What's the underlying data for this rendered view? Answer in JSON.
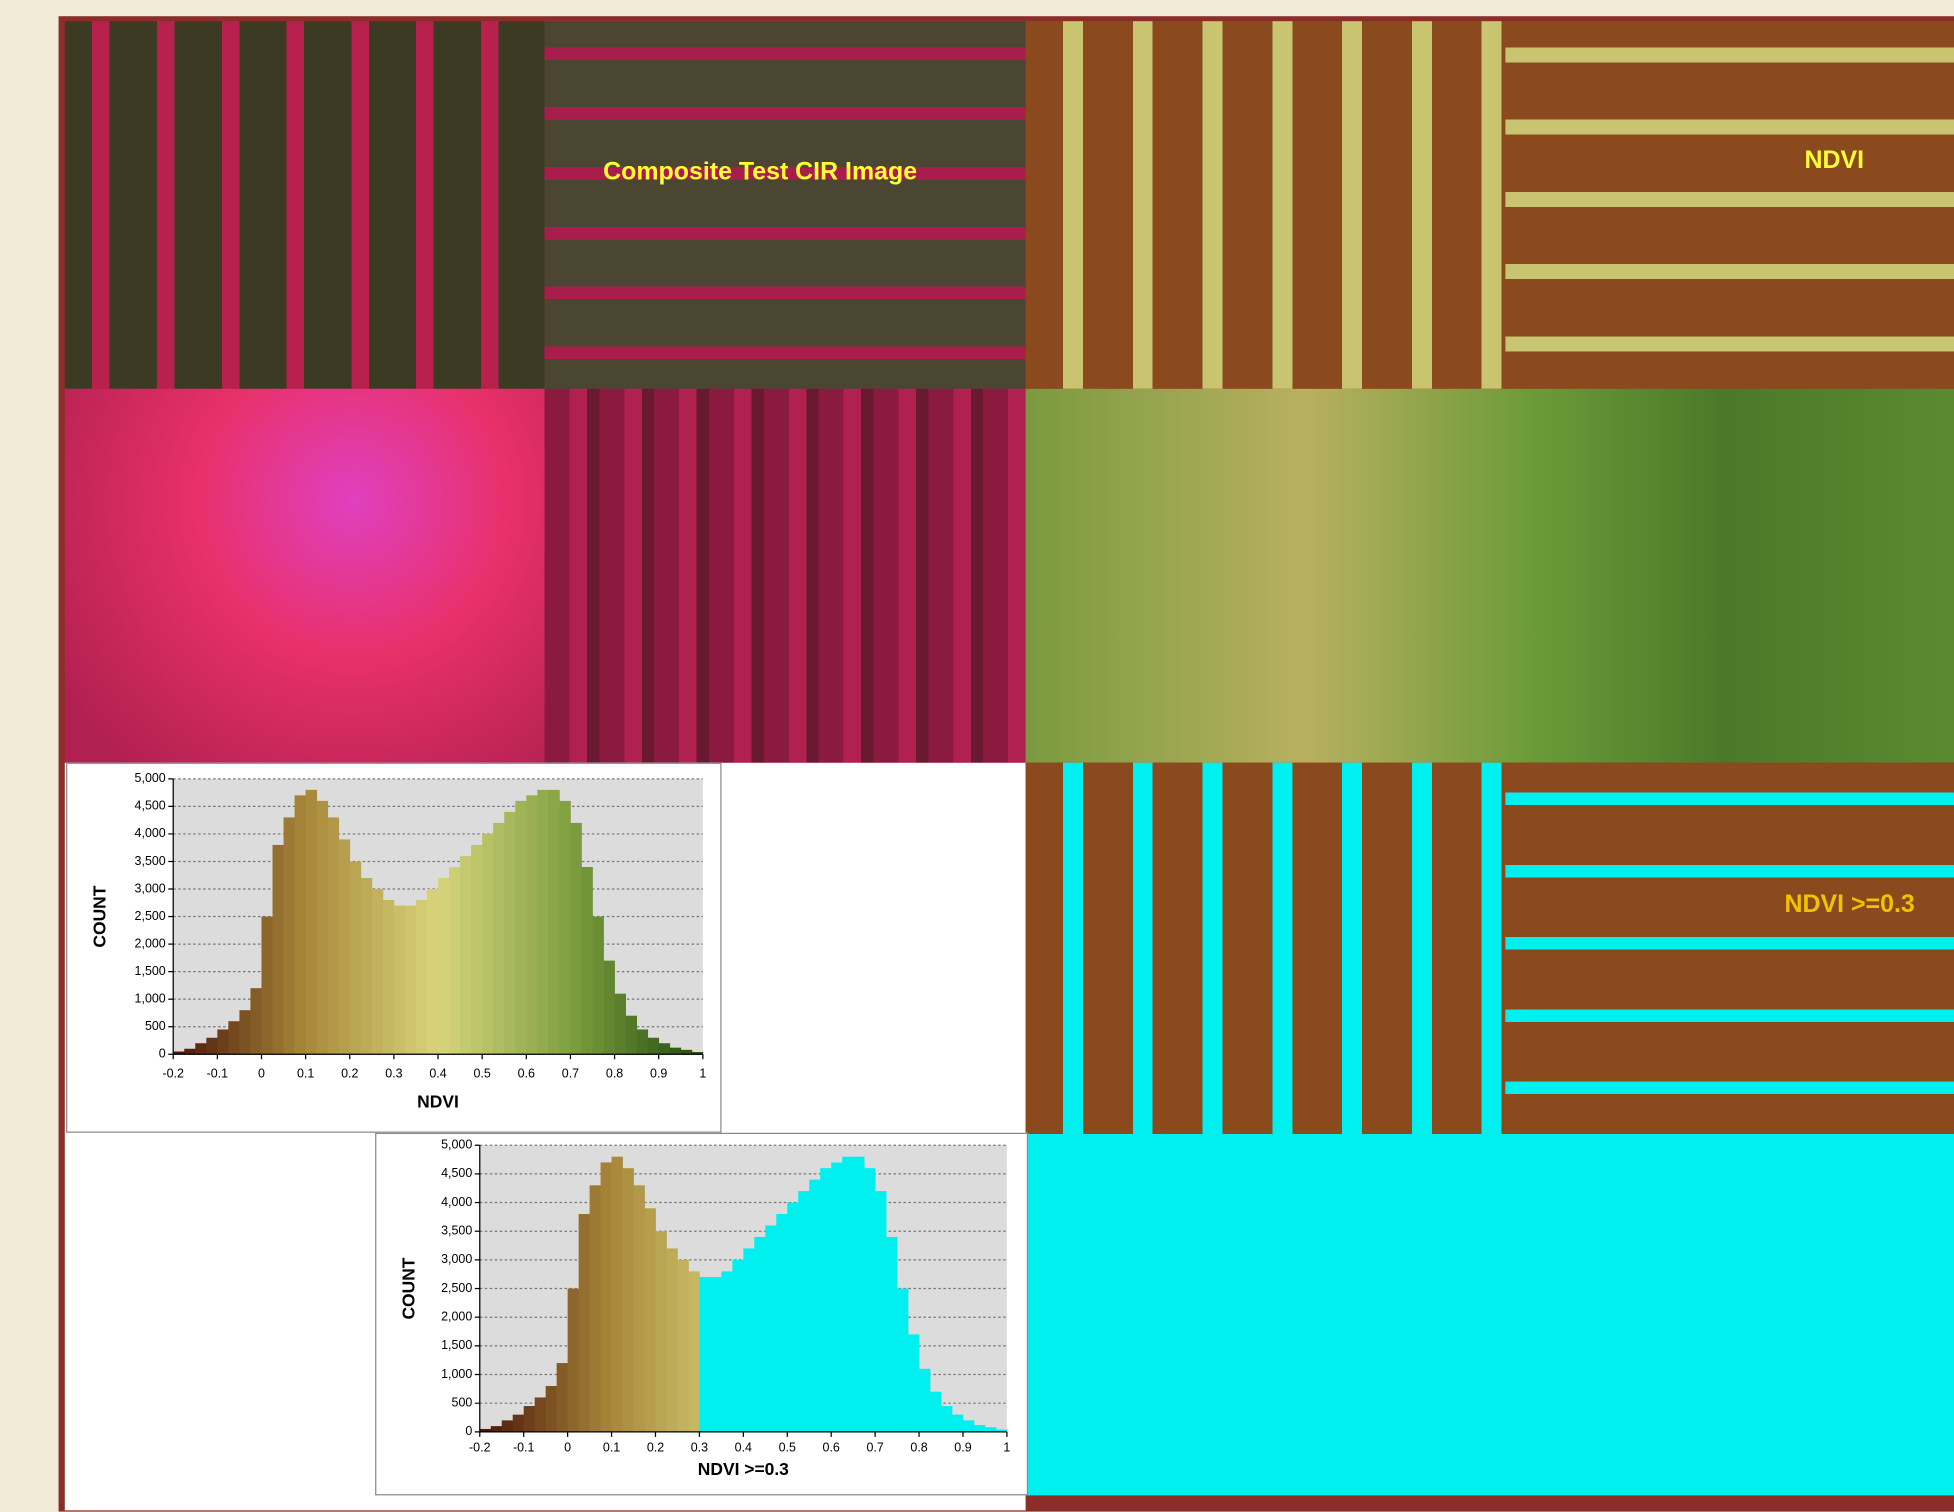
{
  "image_labels": [
    "Composite Test CIR Image",
    "NDVI",
    "NDVI >=0.3"
  ],
  "chart_data": [
    {
      "type": "histogram",
      "xlabel": "NDVI",
      "ylabel": "COUNT",
      "bins": [
        -0.2,
        -0.175,
        -0.15,
        -0.125,
        -0.1,
        -0.075,
        -0.05,
        -0.025,
        0,
        0.025,
        0.05,
        0.075,
        0.1,
        0.125,
        0.15,
        0.175,
        0.2,
        0.225,
        0.25,
        0.275,
        0.3,
        0.325,
        0.35,
        0.375,
        0.4,
        0.425,
        0.45,
        0.475,
        0.5,
        0.525,
        0.55,
        0.575,
        0.6,
        0.625,
        0.65,
        0.675,
        0.7,
        0.725,
        0.75,
        0.775,
        0.8,
        0.825,
        0.85,
        0.875,
        0.9,
        0.925,
        0.95,
        0.975,
        1
      ],
      "values": [
        50,
        100,
        200,
        300,
        450,
        600,
        800,
        1200,
        2500,
        3800,
        4300,
        4700,
        4800,
        4600,
        4300,
        3900,
        3500,
        3200,
        3000,
        2800,
        2700,
        2700,
        2800,
        3000,
        3200,
        3400,
        3600,
        3800,
        4000,
        4200,
        4400,
        4600,
        4700,
        4800,
        4800,
        4600,
        4200,
        3400,
        2500,
        1700,
        1100,
        700,
        450,
        300,
        200,
        120,
        80,
        40
      ],
      "color_ramp": [
        "#4a1206",
        "#a8883a",
        "#d8d47c",
        "#7fa040",
        "#1f4a0c"
      ],
      "xlim": [
        -0.2,
        1
      ],
      "xticks": [
        -0.2,
        -0.1,
        0,
        0.1,
        0.2,
        0.3,
        0.4,
        0.5,
        0.6,
        0.7,
        0.8,
        0.9,
        1
      ],
      "ylim": [
        0,
        5000
      ],
      "yticks": [
        0,
        500,
        {
          "value": 1000,
          "label": "1,000"
        },
        {
          "value": 1500,
          "label": "1,500"
        },
        {
          "value": 2000,
          "label": "2,000"
        },
        {
          "value": 2500,
          "label": "2,500"
        },
        {
          "value": 3000,
          "label": "3,000"
        },
        {
          "value": 3500,
          "label": "3,500"
        },
        {
          "value": 4000,
          "label": "4,000"
        },
        {
          "value": 4500,
          "label": "4,500"
        },
        {
          "value": 5000,
          "label": "5,000"
        }
      ],
      "grid": true
    },
    {
      "type": "histogram",
      "xlabel": "NDVI >=0.3",
      "ylabel": "COUNT",
      "bins": [
        -0.2,
        -0.175,
        -0.15,
        -0.125,
        -0.1,
        -0.075,
        -0.05,
        -0.025,
        0,
        0.025,
        0.05,
        0.075,
        0.1,
        0.125,
        0.15,
        0.175,
        0.2,
        0.225,
        0.25,
        0.275,
        0.3,
        0.325,
        0.35,
        0.375,
        0.4,
        0.425,
        0.45,
        0.475,
        0.5,
        0.525,
        0.55,
        0.575,
        0.6,
        0.625,
        0.65,
        0.675,
        0.7,
        0.725,
        0.75,
        0.775,
        0.8,
        0.825,
        0.85,
        0.875,
        0.9,
        0.925,
        0.95,
        0.975,
        1
      ],
      "values": [
        50,
        100,
        200,
        300,
        450,
        600,
        800,
        1200,
        2500,
        3800,
        4300,
        4700,
        4800,
        4600,
        4300,
        3900,
        3500,
        3200,
        3000,
        2800,
        2700,
        2700,
        2800,
        3000,
        3200,
        3400,
        3600,
        3800,
        4000,
        4200,
        4400,
        4600,
        4700,
        4800,
        4800,
        4600,
        4200,
        3400,
        2500,
        1700,
        1100,
        700,
        450,
        300,
        200,
        120,
        80,
        40
      ],
      "color_ramp": [
        "#4a1206",
        "#a8883a",
        "#d8d47c",
        "#7fa040",
        "#1f4a0c"
      ],
      "threshold": 0.3,
      "above_color": "#00f0f0",
      "xlim": [
        -0.2,
        1
      ],
      "xticks": [
        -0.2,
        -0.1,
        0,
        0.1,
        0.2,
        0.3,
        0.4,
        0.5,
        0.6,
        0.7,
        0.8,
        0.9,
        1
      ],
      "ylim": [
        0,
        5000
      ],
      "yticks": [
        0,
        500,
        {
          "value": 1000,
          "label": "1,000"
        },
        {
          "value": 1500,
          "label": "1,500"
        },
        {
          "value": 2000,
          "label": "2,000"
        },
        {
          "value": 2500,
          "label": "2,500"
        },
        {
          "value": 3000,
          "label": "3,000"
        },
        {
          "value": 3500,
          "label": "3,500"
        },
        {
          "value": 4000,
          "label": "4,000"
        },
        {
          "value": 4500,
          "label": "4,500"
        },
        {
          "value": 5000,
          "label": "5,000"
        }
      ],
      "grid": true
    }
  ]
}
